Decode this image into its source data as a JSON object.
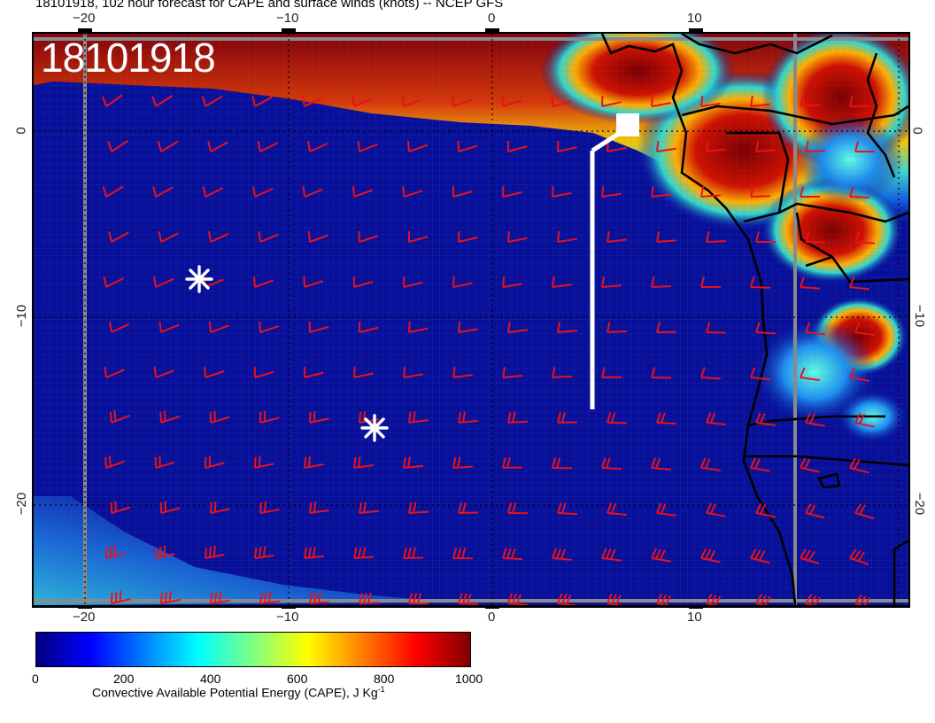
{
  "title": "18101918, 102 hour forecast for CAPE and surface winds (knots) -- NCEP GFS",
  "stamp": "18101918",
  "map": {
    "lon_ticks": [
      "−20",
      "−10",
      "0",
      "10"
    ],
    "lat_ticks": [
      "0",
      "−10",
      "−20"
    ],
    "colors": {
      "background_low": "#08109a",
      "barbs": "#e8121a",
      "coast": "#000000",
      "track": "#ffffff",
      "gridline": "#8a8a8a"
    }
  },
  "markers": {
    "stars": [
      {
        "label": "asterisk-1",
        "lon": -14.7,
        "lat": -7.5
      },
      {
        "label": "asterisk-2",
        "lon": -5.9,
        "lat": -15.6
      }
    ],
    "track": {
      "start": {
        "lon": 5.0,
        "lat": -14.6
      },
      "end": {
        "lon": 6.9,
        "lat": 0.2
      }
    }
  },
  "colorbar": {
    "title": "Convective Available Potential Energy (CAPE), J Kg",
    "title_superscript": "-1",
    "ticks": [
      "0",
      "200",
      "400",
      "600",
      "800",
      "1000"
    ],
    "colors": [
      "#00007f",
      "#0000ff",
      "#0080ff",
      "#00ffff",
      "#80ff80",
      "#ffff00",
      "#ff8000",
      "#ff0000",
      "#7f0000"
    ]
  }
}
